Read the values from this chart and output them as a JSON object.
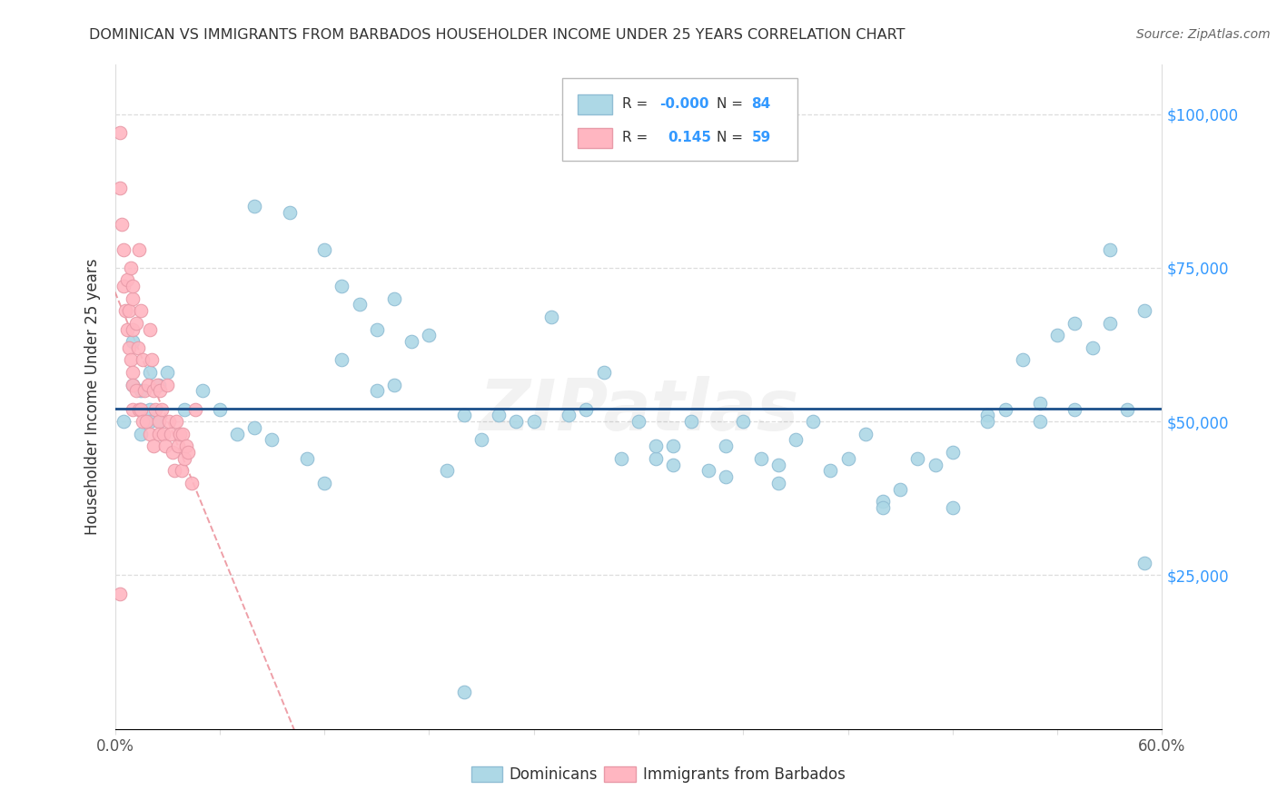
{
  "title": "DOMINICAN VS IMMIGRANTS FROM BARBADOS HOUSEHOLDER INCOME UNDER 25 YEARS CORRELATION CHART",
  "source": "Source: ZipAtlas.com",
  "ylabel": "Householder Income Under 25 years",
  "ytick_values": [
    25000,
    50000,
    75000,
    100000
  ],
  "ytick_labels_right": [
    "$25,000",
    "$50,000",
    "$75,000",
    "$100,000"
  ],
  "ylim": [
    0,
    108000
  ],
  "xlim": [
    0.0,
    0.6
  ],
  "legend_blue_R": "-0.000",
  "legend_blue_N": "84",
  "legend_pink_R": "0.145",
  "legend_pink_N": "59",
  "watermark": "ZIPatlas",
  "blue_scatter_color": "#ADD8E6",
  "blue_edge_color": "#90BDD4",
  "pink_scatter_color": "#FFB6C1",
  "pink_edge_color": "#E89AA8",
  "regression_blue_color": "#1B4F8A",
  "regression_pink_color": "#E05060",
  "right_axis_color": "#3399FF",
  "title_color": "#333333",
  "source_color": "#666666",
  "grid_color": "#DDDDDD",
  "blue_x": [
    0.005,
    0.01,
    0.01,
    0.015,
    0.015,
    0.015,
    0.02,
    0.02,
    0.02,
    0.025,
    0.025,
    0.08,
    0.1,
    0.12,
    0.13,
    0.14,
    0.15,
    0.16,
    0.17,
    0.18,
    0.2,
    0.22,
    0.24,
    0.25,
    0.26,
    0.27,
    0.28,
    0.3,
    0.31,
    0.32,
    0.33,
    0.34,
    0.35,
    0.36,
    0.37,
    0.38,
    0.39,
    0.4,
    0.41,
    0.42,
    0.43,
    0.44,
    0.45,
    0.46,
    0.47,
    0.48,
    0.5,
    0.51,
    0.52,
    0.53,
    0.54,
    0.55,
    0.56,
    0.57,
    0.58,
    0.59,
    0.03,
    0.04,
    0.05,
    0.06,
    0.07,
    0.09,
    0.11,
    0.13,
    0.16,
    0.19,
    0.21,
    0.23,
    0.29,
    0.31,
    0.32,
    0.35,
    0.38,
    0.44,
    0.48,
    0.5,
    0.53,
    0.55,
    0.57,
    0.59,
    0.08,
    0.12,
    0.15,
    0.2
  ],
  "blue_y": [
    50000,
    63000,
    56000,
    52000,
    48000,
    55000,
    58000,
    52000,
    50000,
    56000,
    50000,
    85000,
    84000,
    78000,
    72000,
    69000,
    65000,
    70000,
    63000,
    64000,
    51000,
    51000,
    50000,
    67000,
    51000,
    52000,
    58000,
    50000,
    44000,
    46000,
    50000,
    42000,
    46000,
    50000,
    44000,
    43000,
    47000,
    50000,
    42000,
    44000,
    48000,
    37000,
    39000,
    44000,
    43000,
    45000,
    51000,
    52000,
    60000,
    53000,
    64000,
    66000,
    62000,
    66000,
    52000,
    68000,
    58000,
    52000,
    55000,
    52000,
    48000,
    47000,
    44000,
    60000,
    56000,
    42000,
    47000,
    50000,
    44000,
    46000,
    43000,
    41000,
    40000,
    36000,
    36000,
    50000,
    50000,
    52000,
    78000,
    27000,
    49000,
    40000,
    55000,
    6000
  ],
  "pink_x": [
    0.003,
    0.003,
    0.004,
    0.005,
    0.005,
    0.006,
    0.007,
    0.007,
    0.008,
    0.008,
    0.009,
    0.009,
    0.01,
    0.01,
    0.01,
    0.01,
    0.01,
    0.01,
    0.012,
    0.012,
    0.013,
    0.014,
    0.014,
    0.015,
    0.015,
    0.016,
    0.016,
    0.017,
    0.018,
    0.019,
    0.02,
    0.02,
    0.021,
    0.022,
    0.022,
    0.023,
    0.024,
    0.025,
    0.025,
    0.026,
    0.027,
    0.028,
    0.029,
    0.03,
    0.031,
    0.032,
    0.033,
    0.034,
    0.035,
    0.036,
    0.037,
    0.038,
    0.039,
    0.04,
    0.041,
    0.042,
    0.044,
    0.046,
    0.003
  ],
  "pink_y": [
    97000,
    88000,
    82000,
    72000,
    78000,
    68000,
    65000,
    73000,
    62000,
    68000,
    75000,
    60000,
    70000,
    65000,
    58000,
    56000,
    52000,
    72000,
    66000,
    55000,
    62000,
    78000,
    52000,
    68000,
    52000,
    60000,
    50000,
    55000,
    50000,
    56000,
    65000,
    48000,
    60000,
    55000,
    46000,
    52000,
    56000,
    50000,
    48000,
    55000,
    52000,
    48000,
    46000,
    56000,
    50000,
    48000,
    45000,
    42000,
    50000,
    46000,
    48000,
    42000,
    48000,
    44000,
    46000,
    45000,
    40000,
    52000,
    22000
  ]
}
